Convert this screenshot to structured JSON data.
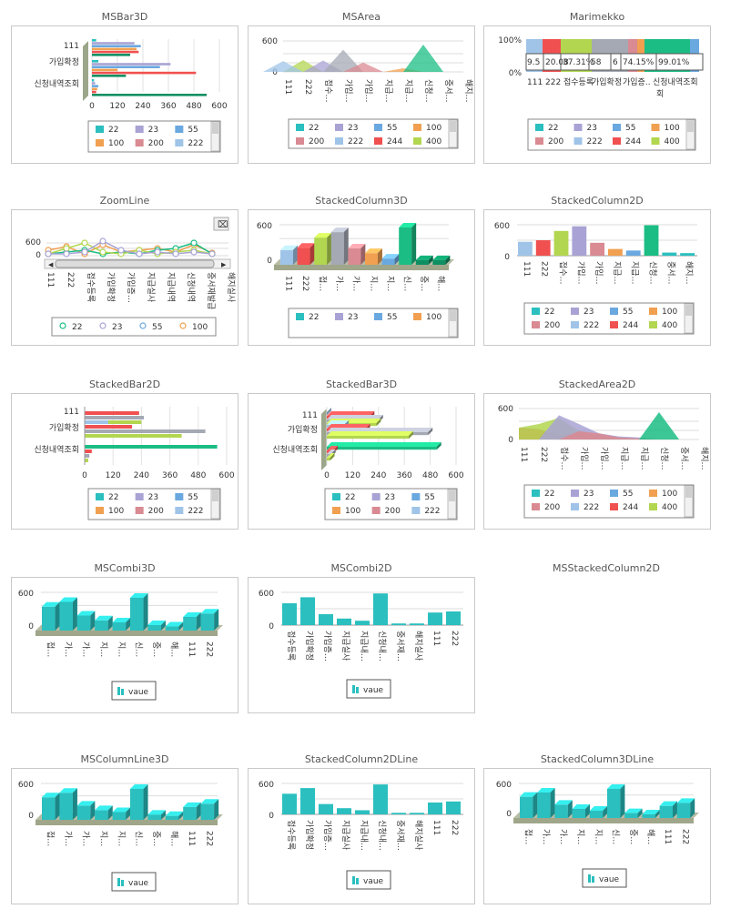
{
  "colors": {
    "teal": "#2bbfbf",
    "lavender": "#a8a3d4",
    "blue": "#6aa8e0",
    "orange": "#f0a050",
    "pink": "#d98a92",
    "lightblue": "#9fc4e8",
    "red": "#f05050",
    "lime": "#b2d650",
    "gray": "#a5a9b4",
    "green": "#1bbd84",
    "darkgreen": "#0e8f62",
    "border": "#c9c9c9"
  },
  "categories": [
    "111",
    "222",
    "접수등록",
    "가입확정",
    "가입증…",
    "지급실사",
    "지급내…",
    "신청내역조회",
    "중서재발급",
    "해지실사"
  ],
  "series_names": [
    "22",
    "23",
    "55",
    "100",
    "200",
    "222",
    "244",
    "400"
  ],
  "chart_data": [
    {
      "id": "c1",
      "title": "MSBar3D",
      "type": "bar",
      "categories": [
        "111",
        "가입확정",
        "신청내역조회"
      ],
      "tick_labels": [
        "0",
        "120",
        "240",
        "360",
        "480",
        "600"
      ],
      "xlim": [
        0,
        600
      ],
      "series": [
        {
          "name": "22",
          "values": [
            20,
            30,
            10
          ]
        },
        {
          "name": "23",
          "values": [
            200,
            370,
            15
          ]
        },
        {
          "name": "55",
          "values": [
            230,
            320,
            30
          ]
        },
        {
          "name": "100",
          "values": [
            210,
            120,
            25
          ]
        },
        {
          "name": "200",
          "values": [
            220,
            490,
            20
          ]
        },
        {
          "name": "222",
          "values": [
            180,
            160,
            540
          ]
        }
      ],
      "legend": [
        "22",
        "23",
        "55",
        "100",
        "200",
        "222"
      ]
    },
    {
      "id": "c2",
      "title": "MSArea",
      "type": "area",
      "categories": [
        "111",
        "222",
        "접수…",
        "가입…",
        "가입…",
        "지급…",
        "지급…",
        "신청…",
        "중서…",
        "해지…"
      ],
      "tick_labels": [
        "600",
        "0"
      ],
      "ylim": [
        0,
        600
      ],
      "legend": [
        "22",
        "23",
        "55",
        "100",
        "200",
        "222",
        "244",
        "400"
      ]
    },
    {
      "id": "c3",
      "title": "Marimekko",
      "type": "bar",
      "tick_labels": [
        "100%",
        "0%"
      ],
      "segment_labels": [
        "9.5",
        "20.08",
        "37.31%",
        "58",
        "6",
        "74.15%",
        "99.01%"
      ],
      "categories": [
        "111",
        "222",
        "접수등록",
        "가입확정",
        "가입증..",
        "신청내역조회"
      ],
      "legend": [
        "22",
        "23",
        "55",
        "100",
        "200",
        "222",
        "244",
        "400"
      ]
    },
    {
      "id": "c4",
      "title": "ZoomLine",
      "type": "line",
      "tick_labels": [
        "600",
        "0"
      ],
      "categories": [
        "111",
        "222",
        "접수등록",
        "가입확정",
        "가입증…",
        "지급실사",
        "지급내역",
        "신청내역",
        "중서재발급",
        "해지실사"
      ],
      "legend": [
        "22",
        "23",
        "55",
        "100"
      ]
    },
    {
      "id": "c5",
      "title": "StackedColumn3D",
      "type": "bar",
      "tick_labels": [
        "600",
        "0"
      ],
      "categories": [
        "111",
        "222",
        "접…",
        "가…",
        "가…",
        "지…",
        "지…",
        "신…",
        "중…",
        "해…"
      ],
      "values": [
        190,
        220,
        350,
        420,
        210,
        150,
        80,
        480,
        60,
        60
      ],
      "legend": [
        "22",
        "23",
        "55",
        "100"
      ]
    },
    {
      "id": "c6",
      "title": "StackedColumn2D",
      "type": "bar",
      "tick_labels": [
        "600",
        "0"
      ],
      "categories": [
        "111",
        "222",
        "접수…",
        "가입…",
        "가입…",
        "지급…",
        "지급…",
        "신청…",
        "중서…",
        "해지…"
      ],
      "values": [
        270,
        300,
        480,
        570,
        250,
        130,
        100,
        590,
        60,
        50
      ],
      "legend": [
        "22",
        "23",
        "55",
        "100",
        "200",
        "222",
        "244",
        "400"
      ]
    },
    {
      "id": "c7",
      "title": "StackedBar2D",
      "type": "bar",
      "categories": [
        "111",
        "가입확정",
        "신청내역조회"
      ],
      "tick_labels": [
        "0",
        "120",
        "240",
        "360",
        "480",
        "600"
      ],
      "xlim": [
        0,
        600
      ],
      "series": [
        {
          "name": "22",
          "values": [
            0,
            100,
            560
          ]
        },
        {
          "name": "23",
          "values": [
            230,
            200,
            30
          ]
        },
        {
          "name": "55",
          "values": [
            250,
            510,
            20
          ]
        },
        {
          "name": "100",
          "values": [
            240,
            410,
            15
          ]
        }
      ],
      "legend": [
        "22",
        "23",
        "55",
        "100",
        "200",
        "222"
      ]
    },
    {
      "id": "c8",
      "title": "StackedBar3D",
      "type": "bar",
      "categories": [
        "111",
        "가입확정",
        "신청내역조회"
      ],
      "tick_labels": [
        "0",
        "120",
        "240",
        "360",
        "480",
        "600"
      ],
      "xlim": [
        0,
        600
      ],
      "series": [
        {
          "name": "22",
          "values": [
            0,
            80,
            510
          ]
        },
        {
          "name": "23",
          "values": [
            200,
            180,
            30
          ]
        },
        {
          "name": "55",
          "values": [
            240,
            470,
            20
          ]
        },
        {
          "name": "100",
          "values": [
            230,
            380,
            15
          ]
        }
      ],
      "legend": [
        "22",
        "23",
        "55",
        "100",
        "200",
        "222"
      ]
    },
    {
      "id": "c9",
      "title": "StackedArea2D",
      "type": "area",
      "tick_labels": [
        "600",
        "0"
      ],
      "categories": [
        "111",
        "222",
        "접수…",
        "가입…",
        "가입…",
        "지급…",
        "지급…",
        "신청…",
        "중서…",
        "해지…"
      ],
      "legend": [
        "22",
        "23",
        "55",
        "100",
        "200",
        "222",
        "244",
        "400"
      ]
    },
    {
      "id": "c10",
      "title": "MSCombi3D",
      "type": "bar",
      "tick_labels": [
        "600",
        "0"
      ],
      "categories": [
        "접…",
        "가…",
        "가…",
        "지…",
        "지…",
        "신…",
        "중…",
        "해…",
        "111",
        "222"
      ],
      "values": [
        350,
        420,
        220,
        150,
        120,
        480,
        80,
        60,
        200,
        250
      ],
      "legend": [
        "vaue"
      ]
    },
    {
      "id": "c11",
      "title": "MSCombi2D",
      "type": "bar",
      "tick_labels": [
        "600",
        "0"
      ],
      "categories": [
        "접수등록",
        "가입확정",
        "가입증…",
        "지급실사",
        "지급내…",
        "신청내…",
        "중서재…",
        "해지실사",
        "111",
        "222"
      ],
      "values": [
        400,
        510,
        200,
        120,
        80,
        580,
        30,
        30,
        230,
        250
      ],
      "legend": [
        "vaue"
      ]
    },
    {
      "id": "c12",
      "title": "MSStackedColumn2D",
      "type": "bar"
    },
    {
      "id": "c13",
      "title": "MSColumnLine3D",
      "type": "bar",
      "tick_labels": [
        "600",
        "0"
      ],
      "categories": [
        "접…",
        "가…",
        "가…",
        "지…",
        "지…",
        "신…",
        "중…",
        "해…",
        "111",
        "222"
      ],
      "values": [
        350,
        420,
        220,
        150,
        120,
        480,
        80,
        60,
        200,
        250
      ],
      "legend": [
        "vaue"
      ]
    },
    {
      "id": "c14",
      "title": "StackedColumn2DLine",
      "type": "bar",
      "tick_labels": [
        "600",
        "0"
      ],
      "categories": [
        "접수등록",
        "가입확정",
        "가입증…",
        "지급실사",
        "지급내…",
        "신청내…",
        "중서재…",
        "해지실사",
        "111",
        "222"
      ],
      "values": [
        400,
        510,
        200,
        120,
        80,
        580,
        30,
        30,
        230,
        250
      ],
      "legend": [
        "vaue"
      ]
    },
    {
      "id": "c15",
      "title": "StackedColumn3DLine",
      "type": "bar",
      "tick_labels": [
        "600",
        "0"
      ],
      "categories": [
        "접…",
        "가…",
        "가…",
        "지…",
        "지…",
        "신…",
        "중…",
        "해…",
        "111",
        "222"
      ],
      "values": [
        350,
        420,
        220,
        150,
        120,
        480,
        80,
        60,
        200,
        250
      ],
      "legend": [
        "vaue"
      ]
    }
  ]
}
